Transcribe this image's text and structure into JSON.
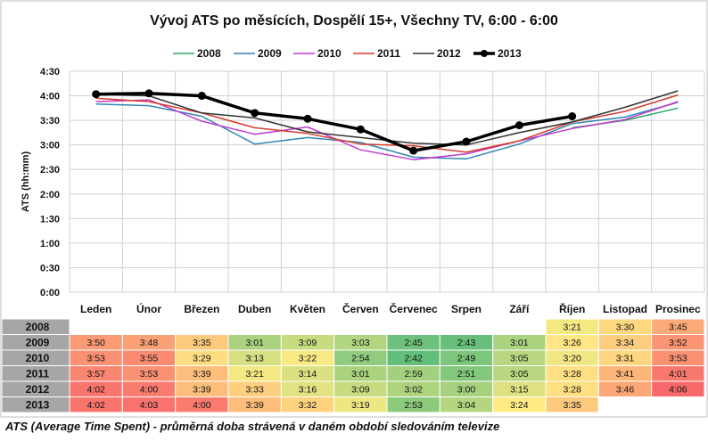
{
  "chart_data": {
    "type": "line",
    "title": "Vývoj ATS po měsících, Dospělí 15+, Všechny TV, 6:00 - 6:00",
    "ylabel": "ATS (hh:mm)",
    "xlabel": "",
    "categories": [
      "Leden",
      "Únor",
      "Březen",
      "Duben",
      "Květen",
      "Červen",
      "Červenec",
      "Srpen",
      "Září",
      "Říjen",
      "Listopad",
      "Prosinec"
    ],
    "yticks": [
      "0:00",
      "0:30",
      "1:00",
      "1:30",
      "2:00",
      "2:30",
      "3:00",
      "3:30",
      "4:00",
      "4:30"
    ],
    "ylim": [
      0,
      270
    ],
    "y_unit": "minutes",
    "grid": true,
    "legend_position": "top",
    "series": [
      {
        "name": "2008",
        "color": "#2ea866",
        "bold": false,
        "values": [
          null,
          null,
          null,
          null,
          null,
          null,
          null,
          null,
          null,
          201,
          210,
          225
        ],
        "labels": [
          "",
          "",
          "",
          "",
          "",
          "",
          "",
          "",
          "",
          "3:21",
          "3:30",
          "3:45"
        ]
      },
      {
        "name": "2009",
        "color": "#2f86b3",
        "bold": false,
        "values": [
          230,
          228,
          215,
          181,
          189,
          183,
          165,
          163,
          181,
          206,
          214,
          232
        ],
        "labels": [
          "3:50",
          "3:48",
          "3:35",
          "3:01",
          "3:09",
          "3:03",
          "2:45",
          "2:43",
          "3:01",
          "3:26",
          "3:34",
          "3:52"
        ]
      },
      {
        "name": "2010",
        "color": "#c13ad0",
        "bold": false,
        "values": [
          233,
          235,
          209,
          193,
          202,
          174,
          162,
          169,
          185,
          200,
          211,
          233
        ],
        "labels": [
          "3:53",
          "3:55",
          "3:29",
          "3:13",
          "3:22",
          "2:54",
          "2:42",
          "2:49",
          "3:05",
          "3:20",
          "3:31",
          "3:53"
        ]
      },
      {
        "name": "2011",
        "color": "#d63b2b",
        "bold": false,
        "values": [
          237,
          233,
          219,
          201,
          194,
          181,
          179,
          171,
          185,
          208,
          221,
          241
        ],
        "labels": [
          "3:57",
          "3:53",
          "3:39",
          "3:21",
          "3:14",
          "3:01",
          "2:59",
          "2:51",
          "3:05",
          "3:28",
          "3:41",
          "4:01"
        ]
      },
      {
        "name": "2012",
        "color": "#333333",
        "bold": false,
        "values": [
          242,
          240,
          219,
          213,
          196,
          189,
          182,
          180,
          195,
          208,
          226,
          246
        ],
        "labels": [
          "4:02",
          "4:00",
          "3:39",
          "3:33",
          "3:16",
          "3:09",
          "3:02",
          "3:00",
          "3:15",
          "3:28",
          "3:46",
          "4:06"
        ]
      },
      {
        "name": "2013",
        "color": "#000000",
        "bold": true,
        "values": [
          242,
          243,
          240,
          219,
          212,
          199,
          173,
          184,
          204,
          215,
          null,
          null
        ],
        "labels": [
          "4:02",
          "4:03",
          "4:00",
          "3:39",
          "3:32",
          "3:19",
          "2:53",
          "3:04",
          "3:24",
          "3:35",
          "",
          ""
        ]
      }
    ]
  },
  "caption": "ATS (Average Time Spent) - průměrná doba strávená v daném období sledováním televize"
}
